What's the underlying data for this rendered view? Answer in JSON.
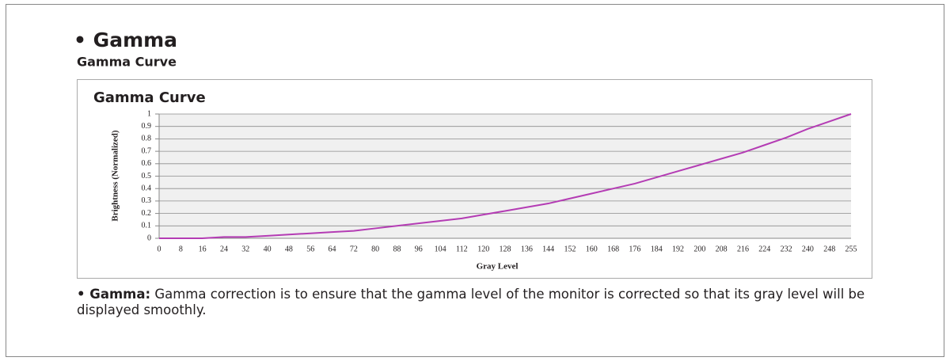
{
  "heading": "• Gamma",
  "subheading": "Gamma Curve",
  "paragraph": {
    "label": "• Gamma:",
    "text": " Gamma correction is to ensure that the gamma level of the monitor is corrected so that its gray level will be displayed smoothly."
  },
  "chart_data": {
    "type": "line",
    "title": "Gamma Curve",
    "x_label": "Gray Level",
    "y_label": "Brightness (Normalized)",
    "categories": [
      0,
      8,
      16,
      24,
      32,
      40,
      48,
      56,
      64,
      72,
      80,
      88,
      96,
      104,
      112,
      120,
      128,
      136,
      144,
      152,
      160,
      168,
      176,
      184,
      192,
      200,
      208,
      216,
      224,
      232,
      240,
      248,
      255
    ],
    "values": [
      0,
      0,
      0,
      0.01,
      0.01,
      0.02,
      0.03,
      0.04,
      0.05,
      0.06,
      0.08,
      0.1,
      0.12,
      0.14,
      0.16,
      0.19,
      0.22,
      0.25,
      0.28,
      0.32,
      0.36,
      0.4,
      0.44,
      0.49,
      0.54,
      0.59,
      0.64,
      0.69,
      0.75,
      0.81,
      0.88,
      0.94,
      1
    ],
    "color": "#b43cb4",
    "ylim": [
      0,
      1
    ],
    "yticks": [
      0,
      0.1,
      0.2,
      0.3,
      0.4,
      0.5,
      0.6,
      0.7,
      0.8,
      0.9,
      1
    ],
    "grid": true
  }
}
